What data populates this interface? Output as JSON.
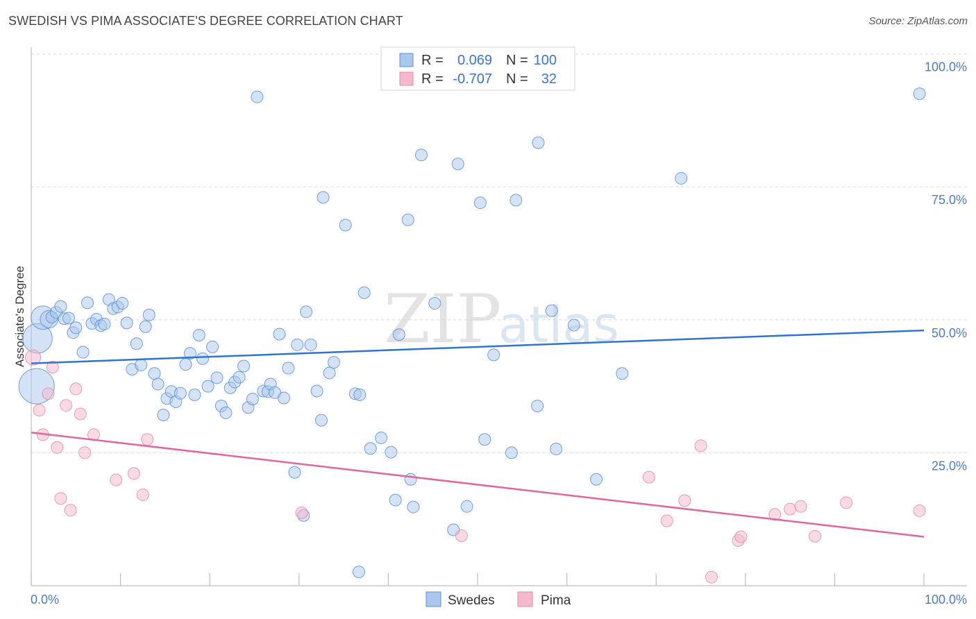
{
  "header": {
    "title": "SWEDISH VS PIMA ASSOCIATE'S DEGREE CORRELATION CHART",
    "source": "Source: ZipAtlas.com"
  },
  "watermark": {
    "zip": "ZIP",
    "atlas": "atlas"
  },
  "colors": {
    "swedes_fill": "#aac8ee",
    "swedes_stroke": "#5b8fd6",
    "swedes_line": "#2f74cf",
    "pima_fill": "#f5b8cc",
    "pima_stroke": "#e58aa8",
    "pima_line": "#e0679a",
    "tick": "#4a7cc9",
    "grid": "#d9d9d9"
  },
  "legend": {
    "r_label": "R =",
    "n_label": "N =",
    "rows": [
      {
        "series": "Swedes",
        "r": "0.069",
        "n": "100"
      },
      {
        "series": "Pima",
        "r": "-0.707",
        "n": "32"
      }
    ]
  },
  "bottom_legend": [
    "Swedes",
    "Pima"
  ],
  "chart_data": {
    "type": "scatter",
    "title": "SWEDISH VS PIMA ASSOCIATE'S DEGREE CORRELATION CHART",
    "xlabel": "",
    "ylabel": "Associate's Degree",
    "xlim": [
      0,
      100
    ],
    "ylim": [
      0,
      100
    ],
    "x_tick_labels": [
      "0.0%",
      "100.0%"
    ],
    "y_tick_labels": [
      "100.0%",
      "75.0%",
      "50.0%",
      "25.0%"
    ],
    "y_tick_values": [
      100,
      75,
      50,
      25
    ],
    "grid": "horizontal dashed",
    "legend_position": "top-center",
    "series": [
      {
        "name": "Swedes",
        "r": 0.069,
        "n": 100,
        "trend": {
          "x": [
            0,
            100
          ],
          "y": [
            41.8,
            48.0
          ]
        },
        "points": [
          [
            0.6,
            37.5,
            3
          ],
          [
            0.7,
            46.5,
            2.5
          ],
          [
            1.3,
            50.4,
            2
          ],
          [
            2.0,
            50.1,
            1.5
          ],
          [
            2.3,
            50.5,
            1
          ],
          [
            2.8,
            51.4,
            1
          ],
          [
            3.3,
            52.5,
            1
          ],
          [
            3.7,
            50.2,
            1
          ],
          [
            4.2,
            50.3,
            1
          ],
          [
            4.7,
            47.6,
            1
          ],
          [
            5.0,
            48.5,
            1
          ],
          [
            5.8,
            43.9,
            1
          ],
          [
            6.3,
            53.2,
            1
          ],
          [
            6.8,
            49.3,
            1
          ],
          [
            7.3,
            50.1,
            1
          ],
          [
            7.8,
            48.9,
            1
          ],
          [
            8.2,
            49.2,
            1
          ],
          [
            8.7,
            53.8,
            1
          ],
          [
            9.2,
            52.1,
            1
          ],
          [
            9.7,
            52.4,
            1
          ],
          [
            10.2,
            53.1,
            1
          ],
          [
            10.7,
            49.4,
            1
          ],
          [
            11.3,
            40.7,
            1
          ],
          [
            11.8,
            45.5,
            1
          ],
          [
            12.3,
            41.5,
            1
          ],
          [
            12.8,
            48.7,
            1
          ],
          [
            13.2,
            50.9,
            1
          ],
          [
            13.8,
            39.9,
            1
          ],
          [
            14.2,
            37.9,
            1
          ],
          [
            14.8,
            32.1,
            1
          ],
          [
            15.2,
            35.2,
            1
          ],
          [
            15.7,
            36.5,
            1
          ],
          [
            16.2,
            34.6,
            1
          ],
          [
            16.7,
            36.2,
            1
          ],
          [
            17.3,
            41.6,
            1
          ],
          [
            17.8,
            43.7,
            1
          ],
          [
            18.3,
            35.9,
            1
          ],
          [
            18.8,
            47.1,
            1
          ],
          [
            19.2,
            42.7,
            1
          ],
          [
            19.8,
            37.5,
            1
          ],
          [
            20.3,
            44.9,
            1
          ],
          [
            20.8,
            39.1,
            1
          ],
          [
            21.3,
            33.8,
            1
          ],
          [
            21.8,
            32.5,
            1
          ],
          [
            22.3,
            37.2,
            1
          ],
          [
            22.8,
            38.3,
            1
          ],
          [
            23.3,
            39.2,
            1
          ],
          [
            23.8,
            41.3,
            1
          ],
          [
            24.3,
            33.5,
            1
          ],
          [
            24.8,
            35.1,
            1
          ],
          [
            26.0,
            36.6,
            1
          ],
          [
            26.5,
            36.5,
            1
          ],
          [
            26.8,
            37.9,
            1
          ],
          [
            27.3,
            36.3,
            1
          ],
          [
            27.8,
            47.3,
            1
          ],
          [
            28.3,
            35.3,
            1
          ],
          [
            28.8,
            40.9,
            1
          ],
          [
            29.8,
            45.3,
            1
          ],
          [
            30.8,
            51.5,
            1
          ],
          [
            31.3,
            45.3,
            1
          ],
          [
            32.0,
            36.6,
            1
          ],
          [
            32.5,
            31.1,
            1
          ],
          [
            33.4,
            40.0,
            1
          ],
          [
            33.9,
            42.0,
            1
          ],
          [
            25.3,
            91.9,
            1
          ],
          [
            32.7,
            73.0,
            1
          ],
          [
            35.2,
            67.8,
            1
          ],
          [
            36.3,
            36.1,
            1
          ],
          [
            36.8,
            35.9,
            1
          ],
          [
            37.3,
            55.1,
            1
          ],
          [
            38.0,
            25.8,
            1
          ],
          [
            39.2,
            27.8,
            1
          ],
          [
            40.3,
            25.1,
            1
          ],
          [
            40.8,
            16.1,
            1
          ],
          [
            41.2,
            47.2,
            1
          ],
          [
            42.2,
            68.8,
            1
          ],
          [
            42.5,
            20.0,
            1
          ],
          [
            42.8,
            14.8,
            1
          ],
          [
            43.7,
            81.0,
            1
          ],
          [
            45.2,
            53.1,
            1
          ],
          [
            47.3,
            10.5,
            1
          ],
          [
            47.8,
            79.3,
            1
          ],
          [
            48.8,
            14.9,
            1
          ],
          [
            50.3,
            72.0,
            1
          ],
          [
            50.8,
            27.5,
            1
          ],
          [
            51.8,
            43.4,
            1
          ],
          [
            53.8,
            25.0,
            1
          ],
          [
            54.3,
            72.5,
            1
          ],
          [
            56.7,
            33.8,
            1
          ],
          [
            56.8,
            83.3,
            1
          ],
          [
            58.3,
            51.7,
            1
          ],
          [
            58.8,
            25.7,
            1
          ],
          [
            60.8,
            49.0,
            1
          ],
          [
            63.3,
            20.0,
            1
          ],
          [
            66.2,
            39.9,
            1
          ],
          [
            72.8,
            76.6,
            1
          ],
          [
            30.5,
            13.2,
            1
          ],
          [
            29.5,
            21.3,
            1
          ],
          [
            36.7,
            2.6,
            1
          ],
          [
            99.5,
            92.5,
            1
          ]
        ]
      },
      {
        "name": "Pima",
        "r": -0.707,
        "n": 32,
        "trend": {
          "x": [
            0,
            100
          ],
          "y": [
            28.8,
            9.2
          ]
        },
        "points": [
          [
            0.2,
            42.9,
            1.3
          ],
          [
            0.9,
            33.0,
            1
          ],
          [
            1.3,
            28.4,
            1
          ],
          [
            1.9,
            36.1,
            1
          ],
          [
            2.4,
            41.1,
            1
          ],
          [
            2.9,
            26.0,
            1
          ],
          [
            3.3,
            16.4,
            1
          ],
          [
            3.9,
            33.9,
            1
          ],
          [
            4.4,
            14.2,
            1
          ],
          [
            5.0,
            37.0,
            1
          ],
          [
            5.5,
            32.3,
            1
          ],
          [
            6.0,
            25.0,
            1
          ],
          [
            7.0,
            28.4,
            1
          ],
          [
            9.5,
            19.9,
            1
          ],
          [
            11.5,
            21.1,
            1
          ],
          [
            12.5,
            17.1,
            1
          ],
          [
            13.0,
            27.5,
            1
          ],
          [
            30.3,
            13.7,
            1
          ],
          [
            48.2,
            9.4,
            1
          ],
          [
            69.2,
            20.4,
            1
          ],
          [
            71.2,
            12.2,
            1
          ],
          [
            73.2,
            16.0,
            1
          ],
          [
            75.0,
            26.3,
            1
          ],
          [
            76.2,
            1.6,
            1
          ],
          [
            79.2,
            8.5,
            1
          ],
          [
            79.5,
            9.2,
            1
          ],
          [
            83.3,
            13.4,
            1
          ],
          [
            85.0,
            14.4,
            1
          ],
          [
            86.2,
            14.9,
            1
          ],
          [
            87.8,
            9.3,
            1
          ],
          [
            91.3,
            15.6,
            1
          ],
          [
            99.5,
            14.1,
            1
          ]
        ]
      }
    ]
  }
}
